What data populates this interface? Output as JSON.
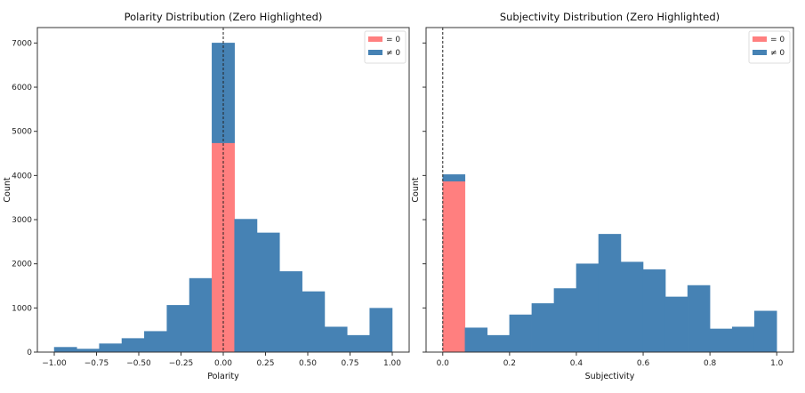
{
  "chart_data": [
    {
      "type": "bar",
      "subtype": "stacked-histogram",
      "title": "Polarity Distribution (Zero Highlighted)",
      "xlabel": "Polarity",
      "ylabel": "Count",
      "bin_edges": [
        -1.0,
        -0.8667,
        -0.7333,
        -0.6,
        -0.4667,
        -0.3333,
        -0.2,
        -0.0667,
        0.0667,
        0.2,
        0.3333,
        0.4667,
        0.6,
        0.7333,
        0.8667,
        1.0
      ],
      "series": [
        {
          "name": "= 0",
          "color": "#ff7f7f",
          "values": [
            0,
            0,
            0,
            0,
            0,
            0,
            0,
            4740,
            0,
            0,
            0,
            0,
            0,
            0,
            0
          ]
        },
        {
          "name": "≠ 0",
          "color": "#4682b4",
          "values": [
            110,
            70,
            190,
            310,
            470,
            1060,
            1670,
            2260,
            3010,
            2700,
            1825,
            1370,
            570,
            380,
            995
          ]
        }
      ],
      "xlim": [
        -1.1,
        1.1
      ],
      "ylim": [
        0,
        7350
      ],
      "xticks": [
        "−1.00",
        "−0.75",
        "−0.50",
        "−0.25",
        "0.00",
        "0.25",
        "0.50",
        "0.75",
        "1.00"
      ],
      "xtick_values": [
        -1,
        -0.75,
        -0.5,
        -0.25,
        0,
        0.25,
        0.5,
        0.75,
        1
      ],
      "yticks": [
        "0",
        "1000",
        "2000",
        "3000",
        "4000",
        "5000",
        "6000",
        "7000"
      ],
      "ytick_values": [
        0,
        1000,
        2000,
        3000,
        4000,
        5000,
        6000,
        7000
      ],
      "vline": 0,
      "legend": "top-right",
      "grid": false
    },
    {
      "type": "bar",
      "subtype": "stacked-histogram",
      "title": "Subjectivity Distribution (Zero Highlighted)",
      "xlabel": "Subjectivity",
      "ylabel": "Count",
      "bin_edges": [
        0,
        0.0667,
        0.1333,
        0.2,
        0.2667,
        0.3333,
        0.4,
        0.4667,
        0.5333,
        0.6,
        0.6667,
        0.7333,
        0.8,
        0.8667,
        0.9333,
        1.0
      ],
      "series": [
        {
          "name": "= 0",
          "color": "#ff7f7f",
          "values": [
            3870,
            0,
            0,
            0,
            0,
            0,
            0,
            0,
            0,
            0,
            0,
            0,
            0,
            0,
            0
          ]
        },
        {
          "name": "≠ 0",
          "color": "#4682b4",
          "values": [
            150,
            550,
            380,
            845,
            1100,
            1440,
            2000,
            2670,
            2040,
            1870,
            1250,
            1510,
            525,
            570,
            930
          ]
        }
      ],
      "xlim": [
        -0.05,
        1.05
      ],
      "ylim": [
        0,
        7350
      ],
      "xticks": [
        "0.0",
        "0.2",
        "0.4",
        "0.6",
        "0.8",
        "1.0"
      ],
      "xtick_values": [
        0,
        0.2,
        0.4,
        0.6,
        0.8,
        1.0
      ],
      "yticks": [],
      "ytick_values": [
        0,
        1000,
        2000,
        3000,
        4000,
        5000,
        6000,
        7000
      ],
      "vline": 0,
      "legend": "top-right",
      "grid": false
    }
  ]
}
